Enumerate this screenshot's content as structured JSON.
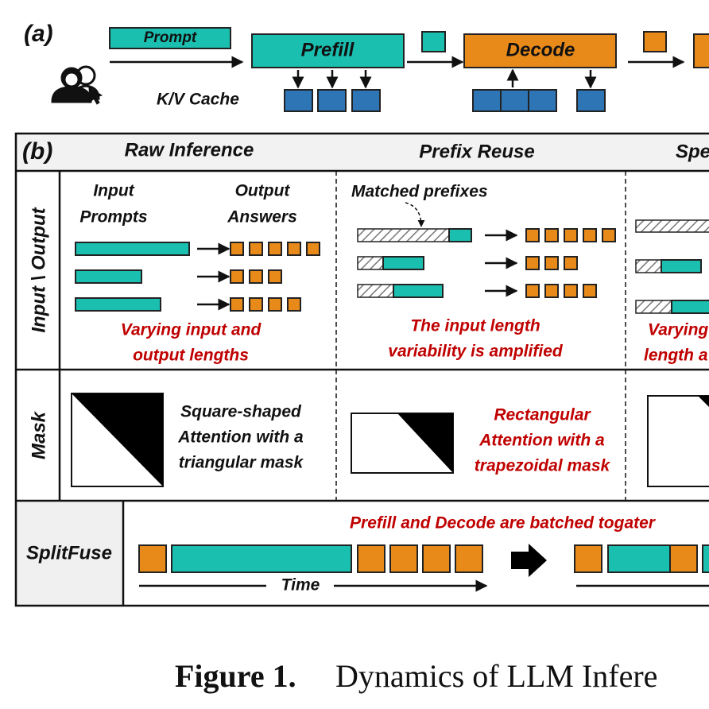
{
  "panel_a": {
    "label": "(a)",
    "prompt": "Prompt",
    "prefill": "Prefill",
    "decode": "Decode",
    "kv_cache": "K/V Cache"
  },
  "panel_b": {
    "label": "(b)",
    "columns": [
      "Raw Inference",
      "Prefix Reuse",
      "Spe"
    ],
    "row_labels": [
      "Input \\ Output",
      "Mask",
      "SplitFuse"
    ],
    "raw_inference": {
      "input_header": [
        "Input",
        "Prompts"
      ],
      "output_header": [
        "Output",
        "Answers"
      ],
      "note": [
        "Varying input and",
        "output lengths"
      ],
      "mask_note": [
        "Square-shaped",
        "Attention with a",
        "triangular mask"
      ]
    },
    "prefix_reuse": {
      "matched": "Matched prefixes",
      "note": [
        "The input length",
        "variability is amplified"
      ],
      "mask_note": [
        "Rectangular",
        "Attention with a",
        "trapezoidal mask"
      ]
    },
    "third_column": {
      "note": [
        "Varying",
        "length a"
      ]
    },
    "splitfuse": {
      "note": "Prefill and Decode are batched togater",
      "time": "Time"
    }
  },
  "caption": {
    "label": "Figure 1.",
    "text": "Dynamics of LLM Infere"
  }
}
